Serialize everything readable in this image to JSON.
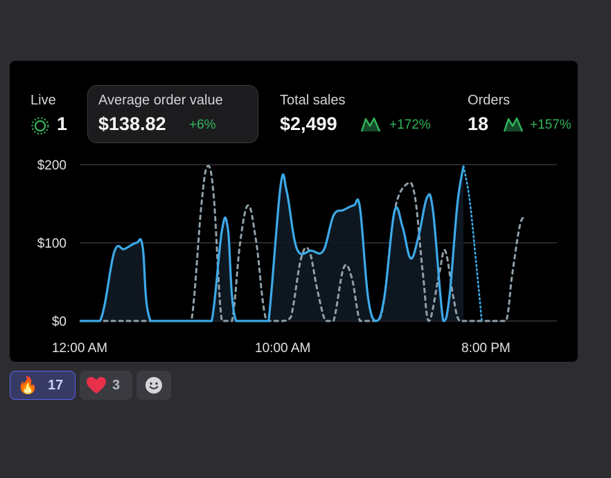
{
  "metrics": {
    "live": {
      "label": "Live",
      "value": "1"
    },
    "average_order_value": {
      "label": "Average order value",
      "value": "$138.82",
      "change": "+6%"
    },
    "total_sales": {
      "label": "Total sales",
      "value": "$2,499",
      "change": "+172%"
    },
    "orders": {
      "label": "Orders",
      "value": "18",
      "change": "+157%"
    }
  },
  "colors": {
    "accent": "#3ca9e8",
    "positive": "#31b55a",
    "comparison": "#8fa0a8"
  },
  "chart_data": {
    "type": "line",
    "ylim": [
      0,
      200
    ],
    "y_ticks": [
      "$0",
      "$100",
      "$200"
    ],
    "x_tick_labels": [
      "12:00 AM",
      "10:00 AM",
      "8:00 PM"
    ],
    "x_range_hours": [
      0,
      23.5
    ],
    "grid": true,
    "series": [
      {
        "style": "solid-blue",
        "points": [
          [
            0,
            0
          ],
          [
            1,
            0
          ],
          [
            1.7,
            88
          ],
          [
            2.2,
            92
          ],
          [
            2.8,
            100
          ],
          [
            3.1,
            95
          ],
          [
            3.5,
            0
          ],
          [
            5,
            0
          ],
          [
            6,
            0
          ],
          [
            6.5,
            0
          ],
          [
            7,
            115
          ],
          [
            7.3,
            118
          ],
          [
            7.7,
            0
          ],
          [
            9,
            0
          ],
          [
            9.3,
            0
          ],
          [
            9.9,
            175
          ],
          [
            10.2,
            165
          ],
          [
            10.7,
            92
          ],
          [
            11.4,
            90
          ],
          [
            12,
            90
          ],
          [
            12.5,
            135
          ],
          [
            13,
            142
          ],
          [
            13.5,
            148
          ],
          [
            13.8,
            145
          ],
          [
            14.2,
            30
          ],
          [
            14.6,
            0
          ],
          [
            15,
            30
          ],
          [
            15.5,
            140
          ],
          [
            15.9,
            120
          ],
          [
            16.3,
            80
          ],
          [
            16.7,
            110
          ],
          [
            17.1,
            158
          ],
          [
            17.4,
            140
          ],
          [
            17.9,
            0
          ],
          [
            18.2,
            30
          ],
          [
            18.6,
            150
          ],
          [
            18.9,
            198
          ]
        ]
      },
      {
        "style": "dotted-blue",
        "points": [
          [
            18.9,
            198
          ],
          [
            19.2,
            155
          ],
          [
            19.5,
            80
          ],
          [
            19.8,
            0
          ]
        ]
      },
      {
        "style": "dashed-gray-comparison",
        "points": [
          [
            1.2,
            0
          ],
          [
            5,
            0
          ],
          [
            5.5,
            0
          ],
          [
            6,
            150
          ],
          [
            6.3,
            198
          ],
          [
            6.6,
            160
          ],
          [
            7,
            0
          ],
          [
            7.5,
            0
          ],
          [
            7.9,
            100
          ],
          [
            8.3,
            148
          ],
          [
            8.7,
            100
          ],
          [
            9.2,
            0
          ],
          [
            10,
            0
          ],
          [
            10.4,
            5
          ],
          [
            10.9,
            80
          ],
          [
            11.3,
            90
          ],
          [
            11.7,
            40
          ],
          [
            12.1,
            0
          ],
          [
            12.5,
            0
          ],
          [
            13,
            68
          ],
          [
            13.4,
            55
          ],
          [
            13.8,
            0
          ],
          [
            14.3,
            0
          ],
          [
            14.7,
            0
          ],
          [
            15,
            30
          ],
          [
            15.5,
            140
          ],
          [
            16.1,
            175
          ],
          [
            16.5,
            160
          ],
          [
            16.9,
            60
          ],
          [
            17.2,
            0
          ],
          [
            17.7,
            60
          ],
          [
            18,
            90
          ],
          [
            18.4,
            30
          ],
          [
            18.7,
            0
          ],
          [
            19.3,
            0
          ],
          [
            20.5,
            0
          ],
          [
            21,
            0
          ],
          [
            21.3,
            60
          ],
          [
            21.7,
            125
          ],
          [
            22,
            130
          ]
        ]
      }
    ]
  },
  "reactions": [
    {
      "emoji": "🔥",
      "icon": "fire-icon",
      "count": "17",
      "active": true
    },
    {
      "emoji": "❤️",
      "icon": "heart-icon",
      "count": "3",
      "active": false
    },
    {
      "icon": "add-reaction-icon",
      "count": "",
      "active": false
    }
  ]
}
